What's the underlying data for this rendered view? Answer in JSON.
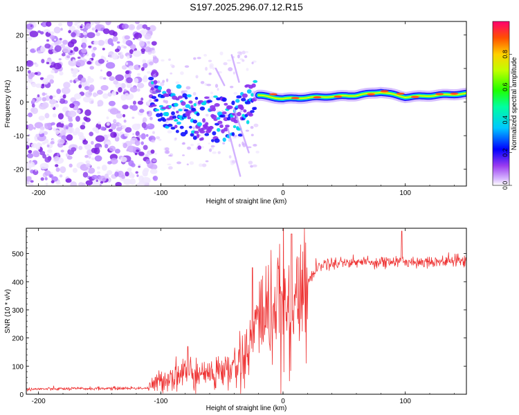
{
  "title": "S197.2025.296.07.12.R15",
  "chart_data": [
    {
      "type": "heatmap",
      "xlabel": "Height of straight line (km)",
      "ylabel": "Frequency (Hz)",
      "xlim": [
        -210,
        150
      ],
      "ylim": [
        -25,
        24
      ],
      "xticks": [
        -200,
        -100,
        0,
        100
      ],
      "yticks": [
        20,
        10,
        0,
        -10,
        -20
      ],
      "colorbar": {
        "label": "Normalized spectral amplitude",
        "ticks": [
          "0.0",
          "0.2",
          "0.4",
          "0.6",
          "0.8"
        ],
        "range": [
          0,
          1
        ]
      },
      "features": {
        "noise_region_x": [
          -210,
          -110
        ],
        "descending_track": [
          {
            "x": -108,
            "y": 3
          },
          {
            "x": -95,
            "y": -2
          },
          {
            "x": -80,
            "y": -4
          },
          {
            "x": -65,
            "y": -6
          },
          {
            "x": -50,
            "y": -4
          },
          {
            "x": -40,
            "y": -5
          },
          {
            "x": -30,
            "y": -1
          },
          {
            "x": -20,
            "y": 1
          }
        ],
        "steady_band": [
          {
            "x": -20,
            "y": 2
          },
          {
            "x": 0,
            "y": 1
          },
          {
            "x": 30,
            "y": 1.5
          },
          {
            "x": 60,
            "y": 2
          },
          {
            "x": 80,
            "y": 3
          },
          {
            "x": 100,
            "y": 1.5
          },
          {
            "x": 150,
            "y": 2.5
          }
        ]
      }
    },
    {
      "type": "line",
      "xlabel": "Height of straight line (km)",
      "ylabel": "SNR (10 * v/v)",
      "xlim": [
        -210,
        150
      ],
      "ylim": [
        0,
        590
      ],
      "xticks": [
        -200,
        -100,
        0,
        100
      ],
      "yticks": [
        0,
        100,
        200,
        300,
        400,
        500
      ],
      "series": [
        {
          "name": "SNR",
          "color": "#ee3333",
          "trend": [
            {
              "x": -210,
              "y": 18
            },
            {
              "x": -110,
              "y": 22
            },
            {
              "x": -100,
              "y": 50
            },
            {
              "x": -80,
              "y": 80
            },
            {
              "x": -60,
              "y": 70
            },
            {
              "x": -40,
              "y": 90
            },
            {
              "x": -30,
              "y": 140
            },
            {
              "x": -20,
              "y": 280
            },
            {
              "x": -10,
              "y": 300
            },
            {
              "x": 0,
              "y": 320
            },
            {
              "x": 10,
              "y": 320
            },
            {
              "x": 20,
              "y": 400
            },
            {
              "x": 30,
              "y": 460
            },
            {
              "x": 50,
              "y": 470
            },
            {
              "x": 100,
              "y": 470
            },
            {
              "x": 150,
              "y": 475
            }
          ],
          "peaks": [
            {
              "x": -78,
              "y": 170
            },
            {
              "x": -25,
              "y": 450
            },
            {
              "x": 7,
              "y": 570
            },
            {
              "x": 97,
              "y": 580
            }
          ]
        }
      ]
    }
  ]
}
